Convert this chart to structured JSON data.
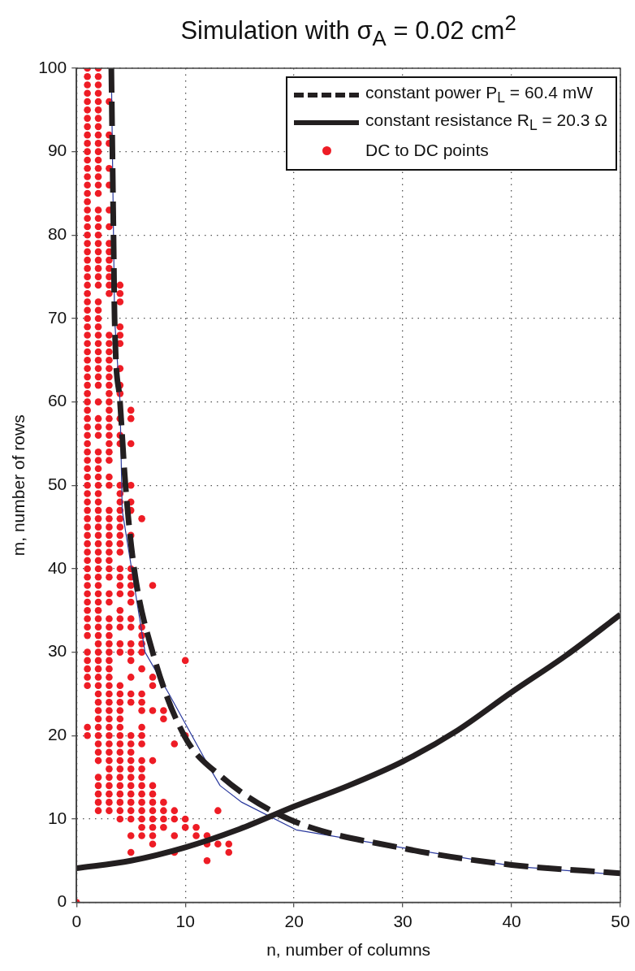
{
  "chart_data": {
    "type": "scatter",
    "title": "Simulation with σ$_{A}$ = 0.02 cm$^{2}$",
    "xlabel": "n, number of columns",
    "ylabel": "m, number of rows",
    "xlim": [
      0,
      50
    ],
    "xticks": [
      0,
      10,
      20,
      30,
      40,
      50
    ],
    "ylim": [
      0,
      100
    ],
    "yticks": [
      0,
      10,
      20,
      30,
      40,
      50,
      60,
      70,
      80,
      90,
      100
    ],
    "grid": true,
    "legend": "top right",
    "series": [
      {
        "name": "constant power P$_{L}$ = 60.4 mW",
        "type": "line",
        "line_style": "dashed",
        "color": "#231f20",
        "x": [
          3.2,
          3.3,
          3.4,
          3.5,
          4.0,
          4.5,
          5.3,
          7.0,
          9.9,
          13.4,
          19.5,
          30,
          40,
          50
        ],
        "values": [
          100,
          90,
          80,
          70,
          60,
          50,
          40,
          30,
          20,
          15,
          10,
          6.5,
          4.5,
          3.5
        ]
      },
      {
        "name": "constant resistance R$_{L}$ = 20.3 Ω",
        "type": "line",
        "line_style": "solid",
        "color": "#231f20",
        "x": [
          0,
          5,
          10,
          15,
          20,
          25,
          30,
          35,
          40,
          45,
          50
        ],
        "values": [
          4.1,
          5,
          6.6,
          8.8,
          11.5,
          14,
          16.9,
          20.6,
          25.2,
          29.6,
          34.5
        ]
      },
      {
        "name": "DC to DC points",
        "marker": "circle",
        "color": "#ee1c25",
        "x": [
          0,
          1,
          1,
          1,
          1,
          1,
          1,
          1,
          1,
          1,
          1,
          1,
          1,
          1,
          1,
          1,
          1,
          1,
          1,
          1,
          1,
          1,
          1,
          1,
          1,
          1,
          1,
          1,
          1,
          1,
          1,
          1,
          1,
          1,
          1,
          1,
          1,
          1,
          1,
          1,
          1,
          1,
          1,
          1,
          1,
          1,
          1,
          1,
          1,
          1,
          1,
          1,
          1,
          1,
          1,
          1,
          1,
          1,
          1,
          1,
          1,
          1,
          1,
          1,
          1,
          1,
          1,
          1,
          1,
          1,
          1,
          1,
          1,
          1,
          1,
          1,
          1,
          2,
          2,
          2,
          2,
          2,
          2,
          2,
          2,
          2,
          2,
          2,
          2,
          2,
          2,
          2,
          2,
          2,
          2,
          2,
          2,
          2,
          2,
          2,
          2,
          2,
          2,
          2,
          2,
          2,
          2,
          2,
          2,
          2,
          2,
          2,
          2,
          2,
          2,
          2,
          2,
          2,
          2,
          2,
          2,
          2,
          2,
          2,
          2,
          2,
          2,
          2,
          2,
          2,
          2,
          2,
          2,
          2,
          2,
          2,
          2,
          2,
          2,
          2,
          2,
          2,
          2,
          2,
          2,
          2,
          2,
          2,
          2,
          2,
          2,
          2,
          2,
          2,
          2,
          2,
          2,
          2,
          2,
          2,
          2,
          3,
          3,
          3,
          3,
          3,
          3,
          3,
          3,
          3,
          3,
          3,
          3,
          3,
          3,
          3,
          3,
          3,
          3,
          3,
          3,
          3,
          3,
          3,
          3,
          3,
          3,
          3,
          3,
          3,
          3,
          3,
          3,
          3,
          3,
          3,
          3,
          3,
          3,
          3,
          3,
          3,
          3,
          3,
          3,
          3,
          3,
          3,
          3,
          3,
          3,
          3,
          3,
          3,
          3,
          3,
          3,
          3,
          3,
          3,
          3,
          3,
          3,
          3,
          3,
          3,
          3,
          3,
          4,
          4,
          4,
          4,
          4,
          4,
          4,
          4,
          4,
          4,
          4,
          4,
          4,
          4,
          4,
          4,
          4,
          4,
          4,
          4,
          4,
          4,
          4,
          4,
          4,
          4,
          4,
          4,
          4,
          4,
          4,
          4,
          4,
          4,
          4,
          4,
          4,
          4,
          4,
          4,
          4,
          4,
          4,
          4,
          4,
          4,
          4,
          5,
          5,
          5,
          5,
          5,
          5,
          5,
          5,
          5,
          5,
          5,
          5,
          5,
          5,
          5,
          5,
          5,
          5,
          5,
          5,
          5,
          5,
          5,
          5,
          5,
          5,
          5,
          5,
          5,
          5,
          5,
          5,
          5,
          6,
          6,
          6,
          6,
          6,
          6,
          6,
          6,
          6,
          6,
          6,
          6,
          6,
          6,
          6,
          6,
          6,
          6,
          6,
          6,
          6,
          6,
          7,
          7,
          7,
          7,
          7,
          7,
          7,
          7,
          7,
          7,
          7,
          7,
          7,
          8,
          8,
          8,
          8,
          8,
          8,
          9,
          9,
          9,
          9,
          9,
          10,
          10,
          10,
          10,
          11,
          11,
          12,
          12,
          12,
          13,
          13,
          14,
          14
        ],
        "values": [
          0,
          100,
          99,
          98,
          97,
          96,
          95,
          94,
          93,
          92,
          91,
          90,
          89,
          88,
          87,
          86,
          85,
          84,
          83,
          82,
          81,
          80,
          79,
          78,
          77,
          76,
          75,
          74,
          73,
          72,
          71,
          70,
          69,
          68,
          67,
          66,
          65,
          64,
          63,
          62,
          61,
          60,
          59,
          58,
          57,
          56,
          55,
          54,
          53,
          52,
          51,
          50,
          49,
          48,
          47,
          46,
          45,
          44,
          43,
          42,
          41,
          40,
          39,
          38,
          37,
          36,
          35,
          34,
          33,
          32,
          30,
          29,
          28,
          27,
          26,
          21,
          20,
          100,
          99,
          98,
          97,
          96,
          95,
          94,
          93,
          92,
          91,
          90,
          89,
          88,
          87,
          86,
          85,
          83,
          82,
          81,
          80,
          79,
          78,
          77,
          76,
          75,
          74,
          72,
          71,
          70,
          69,
          68,
          67,
          66,
          65,
          64,
          63,
          62,
          60,
          58,
          57,
          56,
          54,
          53,
          52,
          51,
          50,
          49,
          48,
          47,
          46,
          45,
          44,
          43,
          42,
          41,
          40,
          39,
          38,
          37,
          36,
          35,
          34,
          33,
          32,
          31,
          30,
          29,
          28,
          27,
          26,
          25,
          24,
          23,
          22,
          21,
          20,
          19,
          18,
          17,
          15,
          14,
          13,
          12,
          11,
          96,
          92,
          91,
          88,
          86,
          83,
          81,
          79,
          78,
          77,
          76,
          75,
          74,
          73,
          68,
          67,
          66,
          65,
          64,
          63,
          62,
          61,
          60,
          59,
          58,
          57,
          56,
          55,
          54,
          53,
          51,
          50,
          47,
          46,
          45,
          44,
          43,
          42,
          41,
          40,
          39,
          37,
          36,
          34,
          33,
          32,
          31,
          30,
          29,
          28,
          27,
          26,
          25,
          24,
          23,
          22,
          21,
          20,
          19,
          18,
          17,
          16,
          15,
          14,
          13,
          12,
          11,
          74,
          73,
          72,
          69,
          68,
          67,
          64,
          62,
          61,
          58,
          56,
          55,
          50,
          49,
          48,
          47,
          46,
          45,
          44,
          43,
          42,
          40,
          39,
          38,
          37,
          35,
          34,
          33,
          31,
          30,
          26,
          25,
          24,
          23,
          22,
          21,
          20,
          19,
          18,
          17,
          16,
          15,
          14,
          13,
          12,
          11,
          10,
          59,
          58,
          55,
          50,
          48,
          47,
          44,
          40,
          39,
          38,
          37,
          36,
          34,
          33,
          31,
          30,
          29,
          27,
          25,
          24,
          20,
          19,
          18,
          17,
          16,
          15,
          14,
          13,
          12,
          11,
          10,
          8,
          6,
          46,
          33,
          32,
          31,
          30,
          28,
          25,
          24,
          23,
          21,
          20,
          19,
          17,
          16,
          15,
          14,
          13,
          12,
          11,
          10,
          9,
          8,
          38,
          27,
          26,
          23,
          17,
          14,
          13,
          12,
          11,
          10,
          9,
          8,
          7,
          23,
          22,
          12,
          11,
          10,
          9,
          19,
          11,
          10,
          8,
          6,
          29,
          20,
          10,
          9,
          9,
          8,
          8,
          7,
          5,
          11,
          7,
          7,
          6
        ]
      },
      {
        "type": "line",
        "color": "#2b3a9e",
        "x": [
          3.2,
          3.3,
          3.4,
          3.5,
          4.0,
          4.2,
          6.3,
          8.5,
          12.3,
          13.2,
          15.2,
          20.2,
          26.5,
          40.4,
          50
        ],
        "values": [
          100,
          90,
          80,
          70,
          60,
          47,
          30,
          25,
          16,
          14,
          12,
          8.7,
          7.3,
          4.3,
          3.3
        ]
      }
    ]
  }
}
